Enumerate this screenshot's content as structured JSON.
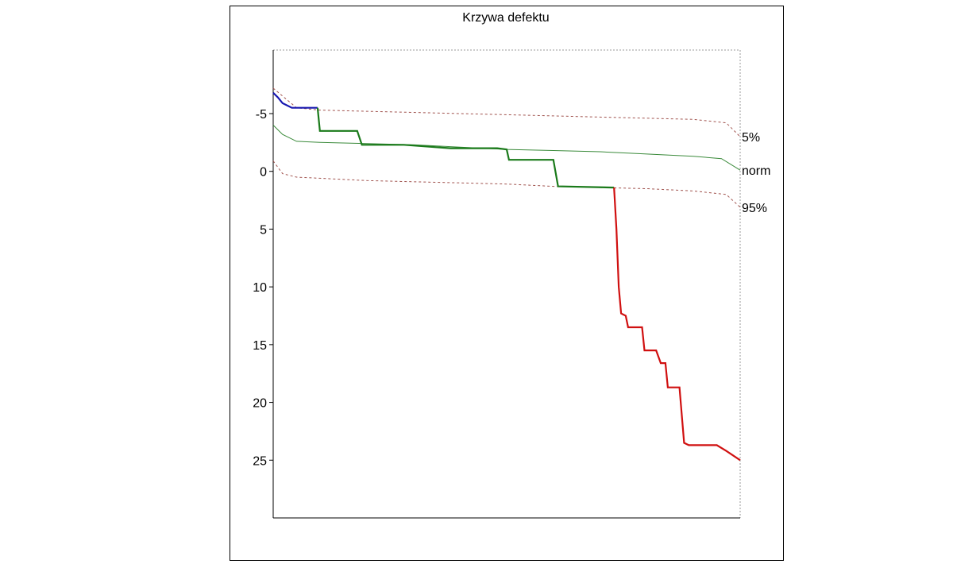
{
  "chart_data": {
    "type": "line",
    "title": "Krzywa defektu",
    "xlabel": "",
    "ylabel": "",
    "x_range": [
      0,
      100
    ],
    "ylim": [
      -10.5,
      30
    ],
    "y_inverted": true,
    "yticks": [
      -5,
      0,
      5,
      10,
      15,
      20,
      25
    ],
    "grid": false,
    "series": [
      {
        "name": "5%",
        "style": "dashed",
        "color": "#a0524d",
        "points": [
          [
            0,
            -7.2
          ],
          [
            5,
            -5.5
          ],
          [
            10,
            -5.3
          ],
          [
            20,
            -5.2
          ],
          [
            30,
            -5.1
          ],
          [
            40,
            -5.0
          ],
          [
            50,
            -4.9
          ],
          [
            60,
            -4.8
          ],
          [
            70,
            -4.7
          ],
          [
            80,
            -4.6
          ],
          [
            90,
            -4.5
          ],
          [
            97,
            -4.2
          ],
          [
            100,
            -3.0
          ]
        ]
      },
      {
        "name": "norm",
        "style": "solid",
        "color": "#3a8a3a",
        "points": [
          [
            0,
            -4.0
          ],
          [
            2,
            -3.2
          ],
          [
            5,
            -2.6
          ],
          [
            10,
            -2.5
          ],
          [
            20,
            -2.4
          ],
          [
            30,
            -2.3
          ],
          [
            40,
            -2.1
          ],
          [
            50,
            -1.9
          ],
          [
            60,
            -1.8
          ],
          [
            70,
            -1.7
          ],
          [
            80,
            -1.5
          ],
          [
            90,
            -1.3
          ],
          [
            96,
            -1.1
          ],
          [
            100,
            -0.1
          ]
        ]
      },
      {
        "name": "95%",
        "style": "dashed",
        "color": "#a0524d",
        "points": [
          [
            0,
            -0.9
          ],
          [
            2,
            0.2
          ],
          [
            5,
            0.5
          ],
          [
            10,
            0.6
          ],
          [
            20,
            0.8
          ],
          [
            30,
            0.9
          ],
          [
            40,
            1.0
          ],
          [
            50,
            1.1
          ],
          [
            60,
            1.3
          ],
          [
            70,
            1.4
          ],
          [
            80,
            1.5
          ],
          [
            90,
            1.7
          ],
          [
            97,
            2.0
          ],
          [
            100,
            3.1
          ]
        ]
      },
      {
        "name": "",
        "style": "solid",
        "color": "#1818b0",
        "points": [
          [
            0,
            -6.8
          ],
          [
            1,
            -6.4
          ],
          [
            2,
            -5.9
          ],
          [
            4,
            -5.5
          ],
          [
            9.5,
            -5.5
          ]
        ]
      },
      {
        "name": "",
        "style": "solid",
        "color": "#1a7a1a",
        "points": [
          [
            9.5,
            -5.5
          ],
          [
            10,
            -3.5
          ],
          [
            18,
            -3.5
          ],
          [
            19,
            -2.3
          ],
          [
            28,
            -2.3
          ],
          [
            38,
            -2.0
          ],
          [
            48,
            -2.0
          ],
          [
            50,
            -1.9
          ],
          [
            50.5,
            -1.0
          ],
          [
            60,
            -1.0
          ],
          [
            61,
            1.3
          ],
          [
            73,
            1.4
          ]
        ]
      },
      {
        "name": "",
        "style": "solid",
        "color": "#d01010",
        "points": [
          [
            73,
            1.4
          ],
          [
            73.5,
            5
          ],
          [
            74,
            10
          ],
          [
            74.5,
            12.3
          ],
          [
            75.5,
            12.5
          ],
          [
            76,
            13.5
          ],
          [
            79,
            13.5
          ],
          [
            79.5,
            15.5
          ],
          [
            82,
            15.5
          ],
          [
            83,
            16.6
          ],
          [
            84,
            16.6
          ],
          [
            84.5,
            18.7
          ],
          [
            87,
            18.7
          ],
          [
            88,
            23.5
          ],
          [
            89,
            23.7
          ],
          [
            95,
            23.7
          ],
          [
            97,
            24.2
          ],
          [
            100,
            25.0
          ]
        ]
      }
    ]
  }
}
